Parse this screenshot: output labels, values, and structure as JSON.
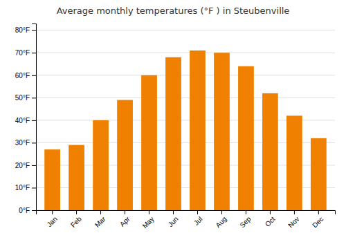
{
  "chart_data": {
    "type": "bar",
    "title": "Average monthly temperatures (°F ) in Steubenville",
    "categories": [
      "Jan",
      "Feb",
      "Mar",
      "Apr",
      "May",
      "Jun",
      "Jul",
      "Aug",
      "Sep",
      "Oct",
      "Nov",
      "Dec"
    ],
    "values": [
      27,
      29,
      40,
      49,
      60,
      68,
      71,
      70,
      64,
      52,
      42,
      32
    ],
    "color": "#F08000",
    "ylim": [
      0,
      83
    ],
    "yticks": [
      {
        "value": 0,
        "label": "0°F"
      },
      {
        "value": 10,
        "label": "10°F"
      },
      {
        "value": 20,
        "label": "20°F"
      },
      {
        "value": 30,
        "label": "30°F"
      },
      {
        "value": 40,
        "label": "40°F"
      },
      {
        "value": 50,
        "label": "50°F"
      },
      {
        "value": 60,
        "label": "60°F"
      },
      {
        "value": 70,
        "label": "70°F"
      },
      {
        "value": 80,
        "label": "80°F"
      }
    ],
    "grid": true
  }
}
